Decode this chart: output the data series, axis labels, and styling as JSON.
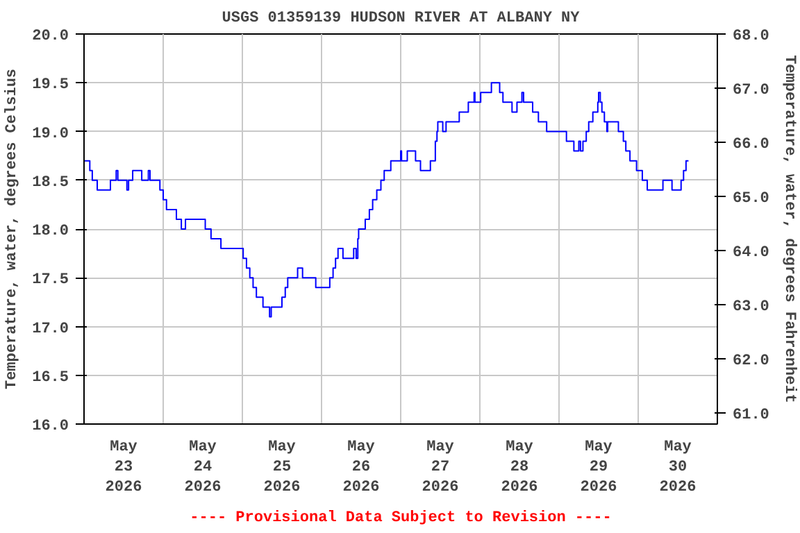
{
  "chart_data": {
    "type": "step",
    "title": "USGS 01359139 HUDSON RIVER AT ALBANY NY",
    "ylabel": "Temperature, water, degrees Celsius",
    "y2label": "Temperature, water, degrees Fahrenheit",
    "annotations": [
      "---- Provisional Data Subject to Revision ----"
    ],
    "x": [
      "2026-05-23T00:00",
      "2026-05-23T01:45",
      "2026-05-23T02:30",
      "2026-05-23T04:00",
      "2026-05-23T08:00",
      "2026-05-23T09:45",
      "2026-05-23T10:15",
      "2026-05-23T13:00",
      "2026-05-23T13:30",
      "2026-05-23T14:45",
      "2026-05-23T17:30",
      "2026-05-23T19:30",
      "2026-05-23T20:00",
      "2026-05-23T23:00",
      "2026-05-24T00:00",
      "2026-05-24T01:00",
      "2026-05-24T04:00",
      "2026-05-24T05:30",
      "2026-05-24T06:45",
      "2026-05-24T12:45",
      "2026-05-24T14:30",
      "2026-05-24T17:30",
      "2026-05-25T00:15",
      "2026-05-25T01:15",
      "2026-05-25T02:15",
      "2026-05-25T03:15",
      "2026-05-25T04:15",
      "2026-05-25T06:15",
      "2026-05-25T08:15",
      "2026-05-25T08:45",
      "2026-05-25T12:00",
      "2026-05-25T13:00",
      "2026-05-25T13:45",
      "2026-05-25T16:45",
      "2026-05-25T18:15",
      "2026-05-25T22:15",
      "2026-05-26T02:30",
      "2026-05-26T03:30",
      "2026-05-26T04:15",
      "2026-05-26T05:00",
      "2026-05-26T06:30",
      "2026-05-26T09:45",
      "2026-05-26T10:30",
      "2026-05-26T11:00",
      "2026-05-26T11:15",
      "2026-05-26T13:15",
      "2026-05-26T14:30",
      "2026-05-26T15:30",
      "2026-05-26T16:45",
      "2026-05-26T18:00",
      "2026-05-26T19:00",
      "2026-05-26T21:00",
      "2026-05-27T00:00",
      "2026-05-27T00:15",
      "2026-05-27T02:00",
      "2026-05-27T04:30",
      "2026-05-27T06:00",
      "2026-05-27T09:00",
      "2026-05-27T10:30",
      "2026-05-27T11:00",
      "2026-05-27T11:15",
      "2026-05-27T12:45",
      "2026-05-27T13:45",
      "2026-05-27T17:45",
      "2026-05-27T20:30",
      "2026-05-27T22:15",
      "2026-05-27T22:30",
      "2026-05-28T00:15",
      "2026-05-28T03:30",
      "2026-05-28T06:00",
      "2026-05-28T07:00",
      "2026-05-28T09:45",
      "2026-05-28T11:15",
      "2026-05-28T12:45",
      "2026-05-28T13:15",
      "2026-05-28T16:00",
      "2026-05-28T17:45",
      "2026-05-28T20:15",
      "2026-05-29T02:15",
      "2026-05-29T04:30",
      "2026-05-29T06:00",
      "2026-05-29T06:30",
      "2026-05-29T07:15",
      "2026-05-29T08:15",
      "2026-05-29T09:00",
      "2026-05-29T10:15",
      "2026-05-29T11:45",
      "2026-05-29T12:00",
      "2026-05-29T12:30",
      "2026-05-29T13:00",
      "2026-05-29T13:45",
      "2026-05-29T14:30",
      "2026-05-29T14:45",
      "2026-05-29T18:00",
      "2026-05-29T19:30",
      "2026-05-29T20:15",
      "2026-05-29T21:30",
      "2026-05-29T23:30",
      "2026-05-30T01:15",
      "2026-05-30T02:45",
      "2026-05-30T07:30",
      "2026-05-30T10:15",
      "2026-05-30T13:00",
      "2026-05-30T13:45",
      "2026-05-30T14:30",
      "2026-05-30T15:15"
    ],
    "series": [
      {
        "color": "#0000ff",
        "values": [
          18.7,
          18.6,
          18.5,
          18.4,
          18.5,
          18.6,
          18.5,
          18.4,
          18.5,
          18.6,
          18.5,
          18.6,
          18.5,
          18.4,
          18.3,
          18.2,
          18.1,
          18.0,
          18.1,
          18.0,
          17.9,
          17.8,
          17.7,
          17.6,
          17.5,
          17.4,
          17.3,
          17.2,
          17.1,
          17.2,
          17.3,
          17.4,
          17.5,
          17.6,
          17.5,
          17.4,
          17.5,
          17.6,
          17.7,
          17.8,
          17.7,
          17.8,
          17.7,
          17.9,
          18.0,
          18.1,
          18.2,
          18.3,
          18.4,
          18.5,
          18.6,
          18.7,
          18.8,
          18.7,
          18.8,
          18.7,
          18.6,
          18.7,
          18.9,
          19.0,
          19.1,
          19.0,
          19.1,
          19.2,
          19.3,
          19.4,
          19.3,
          19.4,
          19.5,
          19.4,
          19.3,
          19.2,
          19.3,
          19.4,
          19.3,
          19.2,
          19.1,
          19.0,
          18.9,
          18.8,
          18.9,
          18.8,
          18.9,
          19.0,
          19.1,
          19.2,
          19.3,
          19.4,
          19.3,
          19.2,
          19.1,
          19.0,
          19.1,
          19.0,
          18.9,
          18.8,
          18.7,
          18.6,
          18.5,
          18.4,
          18.5,
          18.4,
          18.5,
          18.6,
          18.7,
          18.7
        ]
      }
    ],
    "xlim": [
      "2026-05-23T00:00",
      "2026-05-31T00:00"
    ],
    "xticks": [
      {
        "value": "2026-05-23T00:00",
        "label": null
      },
      {
        "value": "2026-05-24T00:00",
        "label": null
      },
      {
        "value": "2026-05-25T00:00",
        "label": null
      },
      {
        "value": "2026-05-26T00:00",
        "label": null
      },
      {
        "value": "2026-05-27T00:00",
        "label": null
      },
      {
        "value": "2026-05-28T00:00",
        "label": null
      },
      {
        "value": "2026-05-29T00:00",
        "label": null
      },
      {
        "value": "2026-05-30T00:00",
        "label": null
      },
      {
        "value": "2026-05-31T00:00",
        "label": null
      },
      {
        "value": "2026-05-23T12:00",
        "label": "May\n23\n2026"
      },
      {
        "value": "2026-05-24T12:00",
        "label": "May\n24\n2026"
      },
      {
        "value": "2026-05-25T12:00",
        "label": "May\n25\n2026"
      },
      {
        "value": "2026-05-26T12:00",
        "label": "May\n26\n2026"
      },
      {
        "value": "2026-05-27T12:00",
        "label": "May\n27\n2026"
      },
      {
        "value": "2026-05-28T12:00",
        "label": "May\n28\n2026"
      },
      {
        "value": "2026-05-29T12:00",
        "label": "May\n29\n2026"
      },
      {
        "value": "2026-05-30T12:00",
        "label": "May\n30\n2026"
      }
    ],
    "ylim": [
      16.0,
      20.0
    ],
    "yticks": [
      {
        "value": 16.0,
        "label": "16.0"
      },
      {
        "value": 16.5,
        "label": "16.5"
      },
      {
        "value": 17.0,
        "label": "17.0"
      },
      {
        "value": 17.5,
        "label": "17.5"
      },
      {
        "value": 18.0,
        "label": "18.0"
      },
      {
        "value": 18.5,
        "label": "18.5"
      },
      {
        "value": 19.0,
        "label": "19.0"
      },
      {
        "value": 19.5,
        "label": "19.5"
      },
      {
        "value": 20.0,
        "label": "20.0"
      }
    ],
    "y2lim": [
      60.8,
      68.0
    ],
    "y2ticks": [
      {
        "value": 61,
        "label": "61.0"
      },
      {
        "value": 62,
        "label": "62.0"
      },
      {
        "value": 63,
        "label": "63.0"
      },
      {
        "value": 64,
        "label": "64.0"
      },
      {
        "value": 65,
        "label": "65.0"
      },
      {
        "value": 66,
        "label": "66.0"
      },
      {
        "value": 67,
        "label": "67.0"
      },
      {
        "value": 68,
        "label": "68.0"
      }
    ],
    "grid": true
  }
}
